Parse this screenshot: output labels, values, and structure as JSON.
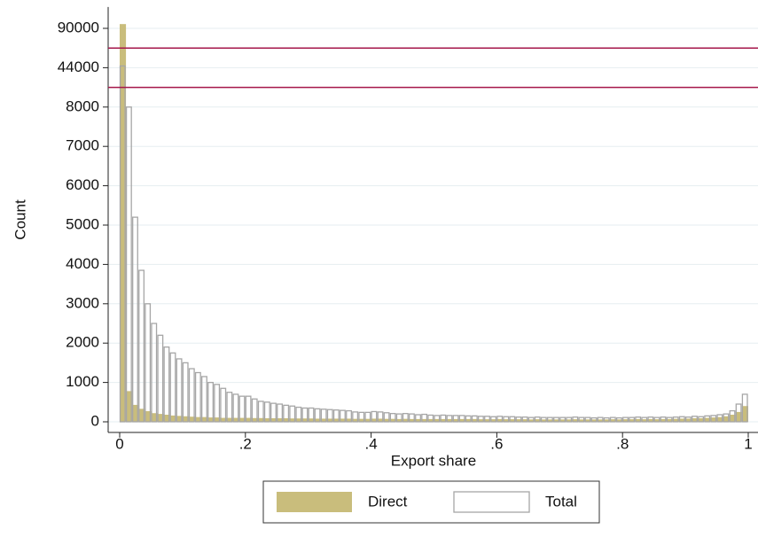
{
  "chart_data": {
    "type": "histogram",
    "x_label": "Export share",
    "y_label": "Count",
    "bins": [
      0,
      0.01,
      0.02,
      0.03,
      0.04,
      0.05,
      0.06,
      0.07,
      0.08,
      0.09,
      0.1,
      0.11,
      0.12,
      0.13,
      0.14,
      0.15,
      0.16,
      0.17,
      0.18,
      0.19,
      0.2,
      0.21,
      0.22,
      0.23,
      0.24,
      0.25,
      0.26,
      0.27,
      0.28,
      0.29,
      0.3,
      0.31,
      0.32,
      0.33,
      0.34,
      0.35,
      0.36,
      0.37,
      0.38,
      0.39,
      0.4,
      0.41,
      0.42,
      0.43,
      0.44,
      0.45,
      0.46,
      0.47,
      0.48,
      0.49,
      0.5,
      0.51,
      0.52,
      0.53,
      0.54,
      0.55,
      0.56,
      0.57,
      0.58,
      0.59,
      0.6,
      0.61,
      0.62,
      0.63,
      0.64,
      0.65,
      0.66,
      0.67,
      0.68,
      0.69,
      0.7,
      0.71,
      0.72,
      0.73,
      0.74,
      0.75,
      0.76,
      0.77,
      0.78,
      0.79,
      0.8,
      0.81,
      0.82,
      0.83,
      0.84,
      0.85,
      0.86,
      0.87,
      0.88,
      0.89,
      0.9,
      0.91,
      0.92,
      0.93,
      0.94,
      0.95,
      0.96,
      0.97,
      0.98,
      0.99,
      1
    ],
    "series": [
      {
        "name": "Direct",
        "color": "#c9bd7c",
        "filled": true,
        "values": [
          95000,
          780,
          430,
          330,
          270,
          220,
          200,
          180,
          160,
          150,
          140,
          130,
          120,
          120,
          110,
          110,
          100,
          100,
          100,
          100,
          100,
          95,
          95,
          90,
          90,
          90,
          90,
          85,
          85,
          85,
          85,
          80,
          80,
          80,
          80,
          80,
          80,
          75,
          75,
          75,
          80,
          80,
          75,
          75,
          70,
          75,
          70,
          70,
          70,
          70,
          70,
          70,
          70,
          70,
          70,
          70,
          70,
          65,
          65,
          65,
          70,
          65,
          65,
          65,
          65,
          60,
          65,
          60,
          60,
          60,
          60,
          60,
          65,
          60,
          60,
          60,
          60,
          60,
          65,
          60,
          65,
          65,
          70,
          65,
          70,
          65,
          70,
          70,
          75,
          80,
          80,
          90,
          90,
          100,
          110,
          120,
          140,
          180,
          250,
          400
        ]
      },
      {
        "name": "Total",
        "color": "#a6a6a6",
        "filled": false,
        "values": [
          46000,
          8000,
          5200,
          3850,
          3000,
          2500,
          2200,
          1900,
          1750,
          1600,
          1500,
          1350,
          1250,
          1150,
          1000,
          950,
          850,
          750,
          700,
          650,
          650,
          580,
          520,
          500,
          470,
          450,
          420,
          400,
          370,
          350,
          350,
          330,
          320,
          310,
          300,
          290,
          280,
          250,
          240,
          240,
          260,
          250,
          230,
          210,
          200,
          210,
          200,
          180,
          190,
          170,
          160,
          170,
          160,
          160,
          160,
          150,
          150,
          140,
          140,
          130,
          140,
          130,
          130,
          120,
          120,
          110,
          120,
          110,
          110,
          110,
          110,
          110,
          120,
          110,
          110,
          100,
          110,
          100,
          110,
          100,
          110,
          110,
          120,
          110,
          120,
          110,
          120,
          110,
          120,
          130,
          120,
          140,
          130,
          150,
          160,
          180,
          200,
          280,
          450,
          700
        ]
      }
    ],
    "xlim": [
      0,
      1
    ],
    "xticks": [
      0,
      {
        "value": 0.2,
        "label": ".2"
      },
      {
        "value": 0.4,
        "label": ".4"
      },
      {
        "value": 0.6,
        "label": ".6"
      },
      {
        "value": 0.8,
        "label": ".8"
      },
      1
    ],
    "ylim": [
      0,
      115000
    ],
    "yticks": [
      0,
      1000,
      2000,
      3000,
      4000,
      5000,
      6000,
      7000,
      8000,
      44000,
      90000
    ],
    "y_scale": "broken",
    "ybreak_lines": [
      26000,
      67000
    ],
    "ybreak_color": "#a5164a",
    "grid": true,
    "legend": "bottom"
  }
}
